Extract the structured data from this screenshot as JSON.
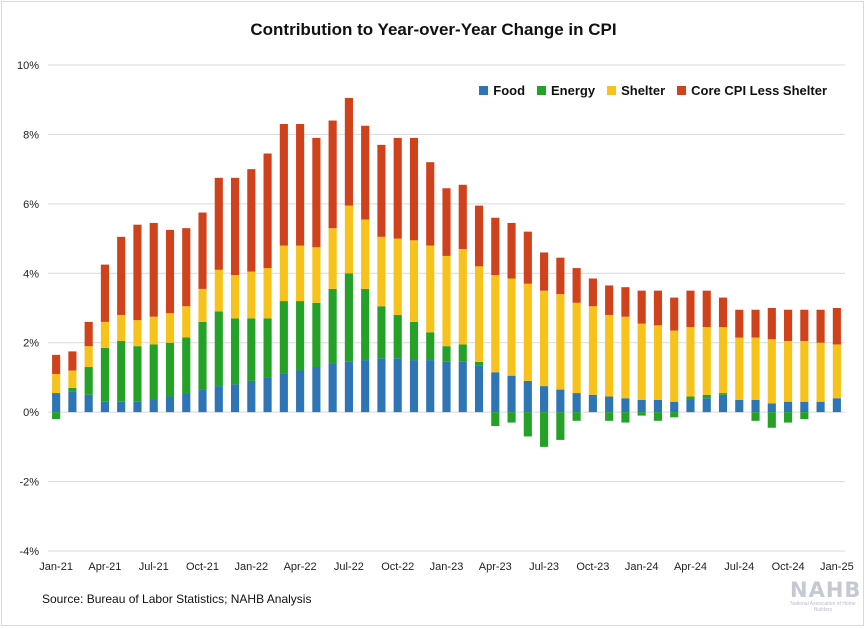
{
  "chart_data": {
    "type": "bar",
    "stacked": true,
    "title": "Contribution to Year-over-Year Change in CPI",
    "source": "Source: Bureau of Labor Statistics; NAHB Analysis",
    "logo": {
      "main": "NAHB",
      "sub": "National Association of Home Builders"
    },
    "ylim": [
      -4,
      10
    ],
    "y_ticks": [
      -4,
      -2,
      0,
      2,
      4,
      6,
      8,
      10
    ],
    "y_tick_labels": [
      "-4%",
      "-2%",
      "0%",
      "2%",
      "4%",
      "6%",
      "8%",
      "10%"
    ],
    "x_tick_labels": [
      "Jan-21",
      "Apr-21",
      "Jul-21",
      "Oct-21",
      "Jan-22",
      "Apr-22",
      "Jul-22",
      "Oct-22",
      "Jan-23",
      "Apr-23",
      "Jul-23",
      "Oct-23",
      "Jan-24",
      "Apr-24",
      "Jul-24",
      "Oct-24",
      "Jan-25"
    ],
    "grid": "horizontal",
    "legend_position": "top-right",
    "categories": [
      "Jan-21",
      "Feb-21",
      "Mar-21",
      "Apr-21",
      "May-21",
      "Jun-21",
      "Jul-21",
      "Aug-21",
      "Sep-21",
      "Oct-21",
      "Nov-21",
      "Dec-21",
      "Jan-22",
      "Feb-22",
      "Mar-22",
      "Apr-22",
      "May-22",
      "Jun-22",
      "Jul-22",
      "Aug-22",
      "Sep-22",
      "Oct-22",
      "Nov-22",
      "Dec-22",
      "Jan-23",
      "Feb-23",
      "Mar-23",
      "Apr-23",
      "May-23",
      "Jun-23",
      "Jul-23",
      "Aug-23",
      "Sep-23",
      "Oct-23",
      "Nov-23",
      "Dec-23",
      "Jan-24",
      "Feb-24",
      "Mar-24",
      "Apr-24",
      "May-24",
      "Jun-24",
      "Jul-24",
      "Aug-24",
      "Sep-24",
      "Oct-24",
      "Nov-24",
      "Dec-24",
      "Jan-25"
    ],
    "series": [
      {
        "name": "Food",
        "color": "#2e75b6",
        "values": [
          0.55,
          0.6,
          0.5,
          0.3,
          0.3,
          0.3,
          0.35,
          0.45,
          0.55,
          0.65,
          0.75,
          0.8,
          0.9,
          1.0,
          1.1,
          1.2,
          1.3,
          1.4,
          1.45,
          1.5,
          1.55,
          1.55,
          1.5,
          1.5,
          1.45,
          1.45,
          1.35,
          1.15,
          1.05,
          0.9,
          0.75,
          0.65,
          0.55,
          0.5,
          0.45,
          0.4,
          0.35,
          0.35,
          0.3,
          0.35,
          0.4,
          0.5,
          0.35,
          0.35,
          0.25,
          0.3,
          0.3,
          0.3,
          0.4
        ]
      },
      {
        "name": "Energy",
        "color": "#24a228",
        "values": [
          -0.2,
          0.1,
          0.8,
          1.55,
          1.75,
          1.6,
          1.6,
          1.55,
          1.6,
          1.95,
          2.15,
          1.9,
          1.8,
          1.7,
          2.1,
          2.0,
          1.85,
          2.15,
          2.55,
          2.05,
          1.5,
          1.25,
          1.1,
          0.8,
          0.45,
          0.5,
          0.1,
          -0.4,
          -0.3,
          -0.7,
          -1.0,
          -0.8,
          -0.25,
          0.0,
          -0.25,
          -0.3,
          -0.1,
          -0.25,
          -0.15,
          0.1,
          0.1,
          0.05,
          0.0,
          -0.25,
          -0.45,
          -0.3,
          -0.2,
          0.0,
          0.0
        ]
      },
      {
        "name": "Shelter",
        "color": "#f7c21a",
        "values": [
          0.55,
          0.5,
          0.6,
          0.75,
          0.75,
          0.75,
          0.8,
          0.85,
          0.9,
          0.95,
          1.2,
          1.25,
          1.35,
          1.45,
          1.6,
          1.6,
          1.6,
          1.75,
          1.95,
          2.0,
          2.0,
          2.2,
          2.35,
          2.5,
          2.6,
          2.75,
          2.75,
          2.8,
          2.8,
          2.8,
          2.75,
          2.75,
          2.6,
          2.55,
          2.35,
          2.35,
          2.2,
          2.15,
          2.05,
          2.0,
          1.95,
          1.9,
          1.8,
          1.8,
          1.85,
          1.75,
          1.75,
          1.7,
          1.55
        ]
      },
      {
        "name": "Core CPI Less Shelter",
        "color": "#d0421b",
        "values": [
          0.55,
          0.55,
          0.7,
          1.65,
          2.25,
          2.75,
          2.7,
          2.4,
          2.25,
          2.2,
          2.65,
          2.8,
          2.95,
          3.3,
          3.5,
          3.5,
          3.15,
          3.1,
          3.1,
          2.7,
          2.65,
          2.9,
          2.95,
          2.4,
          1.95,
          1.85,
          1.75,
          1.65,
          1.6,
          1.5,
          1.1,
          1.05,
          1.0,
          0.8,
          0.85,
          0.85,
          0.95,
          1.0,
          0.95,
          1.05,
          1.05,
          0.85,
          0.8,
          0.8,
          0.9,
          0.9,
          0.9,
          0.95,
          1.05
        ]
      }
    ]
  }
}
